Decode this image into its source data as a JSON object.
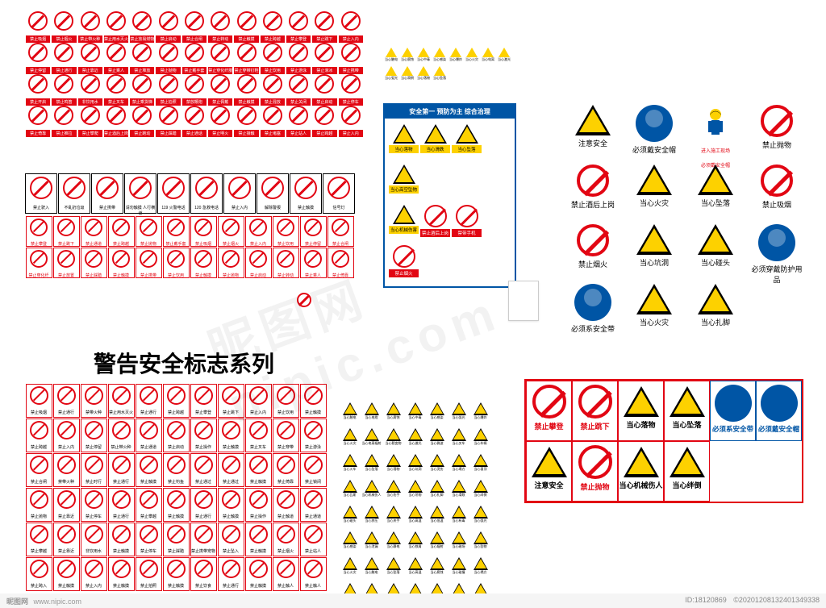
{
  "colors": {
    "prohibition_red": "#e20613",
    "warning_yellow": "#fdd100",
    "mandatory_blue": "#0055a5",
    "black": "#000000",
    "white": "#ffffff",
    "footer_bg": "#f5f5f5",
    "footer_text": "#888888"
  },
  "series_title": "警告安全标志系列",
  "watermark": "昵图网 nipic.com",
  "footer": {
    "site": "昵图网",
    "domain": "www.nipic.com",
    "id": "ID:18120869",
    "timestamp": "©2020120813240134933​8"
  },
  "block_a": {
    "type": "prohibition-grid",
    "cols": 13,
    "rows": 4,
    "sign_shape": "circle-slash",
    "border_color": "#e20613",
    "label_bg": "#e20613",
    "label_color": "#ffffff",
    "labels": [
      "禁止吸烟",
      "禁止烟火",
      "禁止带火种",
      "禁止用水灭火",
      "禁止放易燃物",
      "禁止启动",
      "禁止合闸",
      "禁止转动",
      "禁止触摸",
      "禁止跨越",
      "禁止攀登",
      "禁止跳下",
      "禁止入内",
      "禁止停留",
      "禁止通行",
      "禁止靠近",
      "禁止乘人",
      "禁止堆放",
      "禁止抛物",
      "禁止戴手套",
      "禁止穿化纤服",
      "禁止穿带钉鞋",
      "禁止饮用",
      "禁止游泳",
      "禁止滑冰",
      "禁止携带",
      "禁止开启",
      "禁止鸣笛",
      "非饮用水",
      "禁止叉车",
      "禁止乘货梯",
      "禁止拍照",
      "禁放鞭炮",
      "禁止佩戴",
      "禁止触摸",
      "禁止混放",
      "禁止关闭",
      "禁止启动",
      "禁止停车",
      "禁止倚靠",
      "禁止推拉",
      "禁止攀爬",
      "禁止酒后上岗",
      "禁止跑动",
      "禁止踩踏",
      "禁止通话",
      "禁止明火",
      "禁止接触",
      "禁止堵塞",
      "禁止站人",
      "禁止跨越",
      "禁止入内"
    ]
  },
  "block_b": {
    "type": "mixed-grid",
    "row1": {
      "cols": 10,
      "border": "#000000",
      "labels": [
        "禁止驶入",
        "不乱扔垃圾",
        "禁止携带",
        "请勿触摸 人行横道",
        "119 火警电话",
        "120 急救电话",
        "禁止入内",
        "解除警报",
        "禁止触摸",
        "信号灯"
      ]
    },
    "rows23": {
      "cols": 12,
      "rows": 2,
      "border": "#e20613",
      "label_color": "#e20613",
      "labels": [
        "禁止攀登",
        "禁止跳下",
        "禁止通道",
        "禁止跨越",
        "禁止抛物",
        "禁止戴手套",
        "禁止吸烟",
        "禁止烟火",
        "禁止入内",
        "禁止饮用",
        "禁止停留",
        "禁止合闸",
        "禁止穿化纤",
        "禁止放置",
        "禁止踩踏",
        "禁止触摸",
        "禁止携带",
        "禁止饮用",
        "禁止触摸",
        "禁止抛物",
        "禁止启动",
        "禁止转动",
        "禁止乘人",
        "禁止倚靠"
      ]
    }
  },
  "block_c": {
    "type": "prohibition-grid",
    "cols": 11,
    "rows": 6,
    "border": "#e20613",
    "labels": [
      "禁止吸烟",
      "禁止通行",
      "禁带火种",
      "禁止用水灭火",
      "禁止通行",
      "禁止跨越",
      "禁止攀登",
      "禁止跳下",
      "禁止入内",
      "禁止饮用",
      "禁止触摸",
      "禁止跨越",
      "禁止入内",
      "禁止停留",
      "禁止带火种",
      "禁止通道",
      "禁止启动",
      "禁止操作",
      "禁止触摸",
      "禁止叉车",
      "禁止穿带",
      "禁止游泳",
      "禁止合闸",
      "禁带火种",
      "禁止时行",
      "禁止通行",
      "禁止触摸",
      "禁止钓鱼",
      "禁止通过",
      "禁止通过",
      "禁止触摸",
      "禁止倚靠",
      "禁止锁闭",
      "禁止抛物",
      "禁止靠近",
      "禁止停车",
      "禁止通行",
      "禁止攀越",
      "禁止触摸",
      "禁止通行",
      "禁止触摸",
      "禁止操作",
      "禁止触道",
      "禁止通道",
      "禁止攀越",
      "禁止靠近",
      "非饮用水",
      "禁止触摸",
      "禁止停车",
      "禁止踩踏",
      "禁止携带宠物",
      "禁止坠入",
      "禁止触摸",
      "禁止烟火",
      "禁止站人",
      "禁止跨入",
      "禁止触摸",
      "禁止入内",
      "禁止触摸",
      "禁止拍照",
      "禁止触摸",
      "禁止饮食",
      "禁止通行",
      "禁止触摸",
      "禁止触人",
      "禁止触人"
    ]
  },
  "block_d": {
    "type": "warning-grid-small",
    "cols": 8,
    "rows": 2,
    "extra": 4,
    "tri_color": "#fdd100",
    "labels": [
      "当心触电",
      "当心腐蚀",
      "当心中毒",
      "当心感染",
      "当心爆炸",
      "当心火灾",
      "当心电离",
      "当心激光",
      "当心弧光",
      "当心滑倒",
      "当心落物",
      "当心坠落"
    ]
  },
  "blue_board": {
    "title": "安全第一 预防为主 综合治理",
    "bg": "#0055a5",
    "warning_cells": [
      {
        "label": "当心落物",
        "shape": "triangle"
      },
      {
        "label": "当心滑跌",
        "shape": "triangle"
      },
      {
        "label": "当心坠落",
        "shape": "triangle"
      },
      {
        "label": "当心高空坠物",
        "shape": "triangle"
      },
      {
        "label": "当心机械伤害",
        "shape": "triangle"
      }
    ],
    "prohibition_cells": [
      {
        "label": "禁止酒后上岗",
        "shape": "circle"
      },
      {
        "label": "禁带手机",
        "shape": "circle"
      },
      {
        "label": "禁止烟火",
        "shape": "circle"
      }
    ]
  },
  "block_e": {
    "rows": [
      [
        {
          "shape": "triangle",
          "label": "注意安全"
        },
        {
          "shape": "circle-blue",
          "label": "必须戴安全帽"
        },
        {
          "shape": "worker",
          "label": "进入施工现场\n必须戴安全帽",
          "label_color": "#e20613"
        },
        {
          "shape": "circle-red",
          "label": "禁止抛物"
        }
      ],
      [
        {
          "shape": "circle-red",
          "label": "禁止酒后上岗"
        },
        {
          "shape": "triangle",
          "label": "当心火灾"
        },
        {
          "shape": "triangle",
          "label": "当心坠落"
        },
        {
          "shape": "circle-red",
          "label": "禁止吸烟"
        }
      ],
      [
        {
          "shape": "circle-red",
          "label": "禁止烟火"
        },
        {
          "shape": "triangle",
          "label": "当心坑洞"
        },
        {
          "shape": "triangle",
          "label": "当心碰头"
        },
        {
          "shape": "circle-blue",
          "label": "必须穿戴防护用品"
        }
      ],
      [
        {
          "shape": "circle-blue",
          "label": "必须系安全带"
        },
        {
          "shape": "triangle",
          "label": "当心火灾"
        },
        {
          "shape": "triangle",
          "label": "当心扎脚"
        }
      ]
    ]
  },
  "block_f": {
    "type": "warning-grid-small",
    "cols": 7,
    "rows": 8,
    "tri_color": "#fdd100",
    "labels": [
      "当心触电",
      "当心电缆",
      "当心腐蚀",
      "当心中毒",
      "当心感染",
      "当心弧光",
      "当心爆炸",
      "当心火灾",
      "当心电离辐射",
      "当心裂变物",
      "当心激光",
      "当心微波",
      "当心叉车",
      "当心车辆",
      "当心火车",
      "当心坠落",
      "当心落物",
      "当心坑洞",
      "当心烫伤",
      "当心塌方",
      "当心冒顶",
      "当心瓦斯",
      "当心机械伤人",
      "当心伤手",
      "当心吊物",
      "当心扎脚",
      "当心滑跌",
      "当心绊倒",
      "当心碰头",
      "当心挤压",
      "当心夹手",
      "当心高温",
      "当心低温",
      "当心有毒",
      "当心弧光",
      "当心感染",
      "当心泄漏",
      "当心静电",
      "当心铁屑",
      "当心辐射",
      "当心磁场",
      "当心坠物",
      "当心火灾",
      "当心触电",
      "当心坠落",
      "当心高温",
      "当心腐蚀",
      "当心碰撞",
      "当心塌方",
      "当心机械",
      "当心叉车",
      "当心车辆",
      "当心弧光",
      "当心高压",
      "当心落物",
      "当心伤人"
    ]
  },
  "block_g": {
    "border": "#e20613",
    "rows": [
      [
        {
          "shape": "circle-red",
          "label": "禁止攀登",
          "lc": "r"
        },
        {
          "shape": "circle-red",
          "label": "禁止跳下",
          "lc": "r"
        },
        {
          "shape": "triangle",
          "label": "当心落物",
          "lc": "k"
        },
        {
          "shape": "triangle",
          "label": "当心坠落",
          "lc": "k"
        },
        {
          "shape": "circle-blue",
          "label": "必须系安全带",
          "lc": "b",
          "blue": true
        },
        {
          "shape": "circle-blue",
          "label": "必须戴安全帽",
          "lc": "b",
          "blue": true
        }
      ],
      [
        {
          "shape": "triangle",
          "label": "注意安全",
          "lc": "k"
        },
        {
          "shape": "circle-red",
          "label": "禁止抛物",
          "lc": "r"
        },
        {
          "shape": "triangle",
          "label": "当心机械伤人",
          "lc": "k"
        },
        {
          "shape": "triangle",
          "label": "当心绊倒",
          "lc": "k"
        }
      ]
    ]
  }
}
